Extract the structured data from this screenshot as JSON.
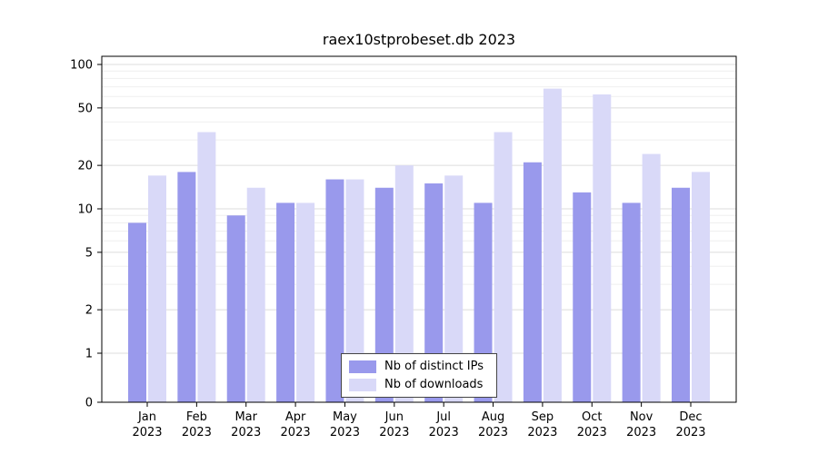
{
  "chart_data": {
    "type": "bar",
    "title": "raex10stprobeset.db 2023",
    "categories": [
      "Jan 2023",
      "Feb 2023",
      "Mar 2023",
      "Apr 2023",
      "May 2023",
      "Jun 2023",
      "Jul 2023",
      "Aug 2023",
      "Sep 2023",
      "Oct 2023",
      "Nov 2023",
      "Dec 2023"
    ],
    "series": [
      {
        "name": "Nb of distinct IPs",
        "color": "#9999ec",
        "values": [
          8,
          18,
          9,
          11,
          16,
          14,
          15,
          11,
          21,
          13,
          11,
          14
        ]
      },
      {
        "name": "Nb of downloads",
        "color": "#d9d9f8",
        "values": [
          17,
          34,
          14,
          11,
          16,
          20,
          17,
          34,
          68,
          62,
          24,
          18
        ]
      }
    ],
    "xlabel": "",
    "ylabel": "",
    "yscale": "symlog",
    "ylim": [
      0,
      100
    ],
    "yticks": [
      0,
      1,
      2,
      5,
      10,
      20,
      50,
      100
    ],
    "minor_yticks": [
      3,
      4,
      6,
      7,
      8,
      9,
      30,
      40,
      60,
      70,
      80,
      90
    ],
    "grid": true,
    "legend_position": "bottom-center"
  }
}
